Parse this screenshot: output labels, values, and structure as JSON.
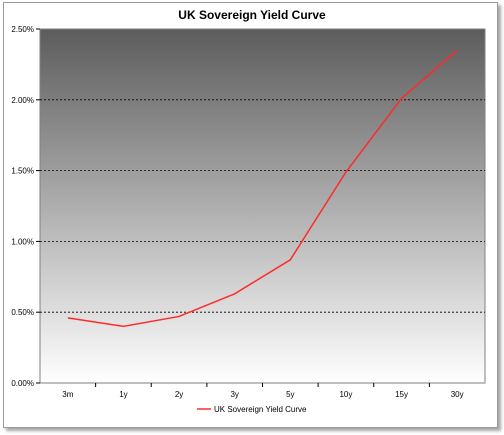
{
  "chart_data": {
    "type": "line",
    "title": "UK Sovereign  Yield  Curve",
    "categories": [
      "3m",
      "1y",
      "2y",
      "3y",
      "5y",
      "10y",
      "15y",
      "30y"
    ],
    "series": [
      {
        "name": "UK Sovereign Yield Curve",
        "values": [
          0.46,
          0.4,
          0.47,
          0.63,
          0.87,
          1.49,
          2.01,
          2.35
        ],
        "color": "#ff2a2a"
      }
    ],
    "ylim": [
      0,
      2.5
    ],
    "yticks": [
      0,
      0.5,
      1.0,
      1.5,
      2.0,
      2.5
    ],
    "ytick_labels": [
      "0.00%",
      "0.50%",
      "1.00%",
      "1.50%",
      "2.00%",
      "2.50%"
    ],
    "grid": "horizontal dotted",
    "legend": "bottom-center",
    "background_gradient": [
      "#5c5c5c",
      "#ffffff"
    ]
  }
}
